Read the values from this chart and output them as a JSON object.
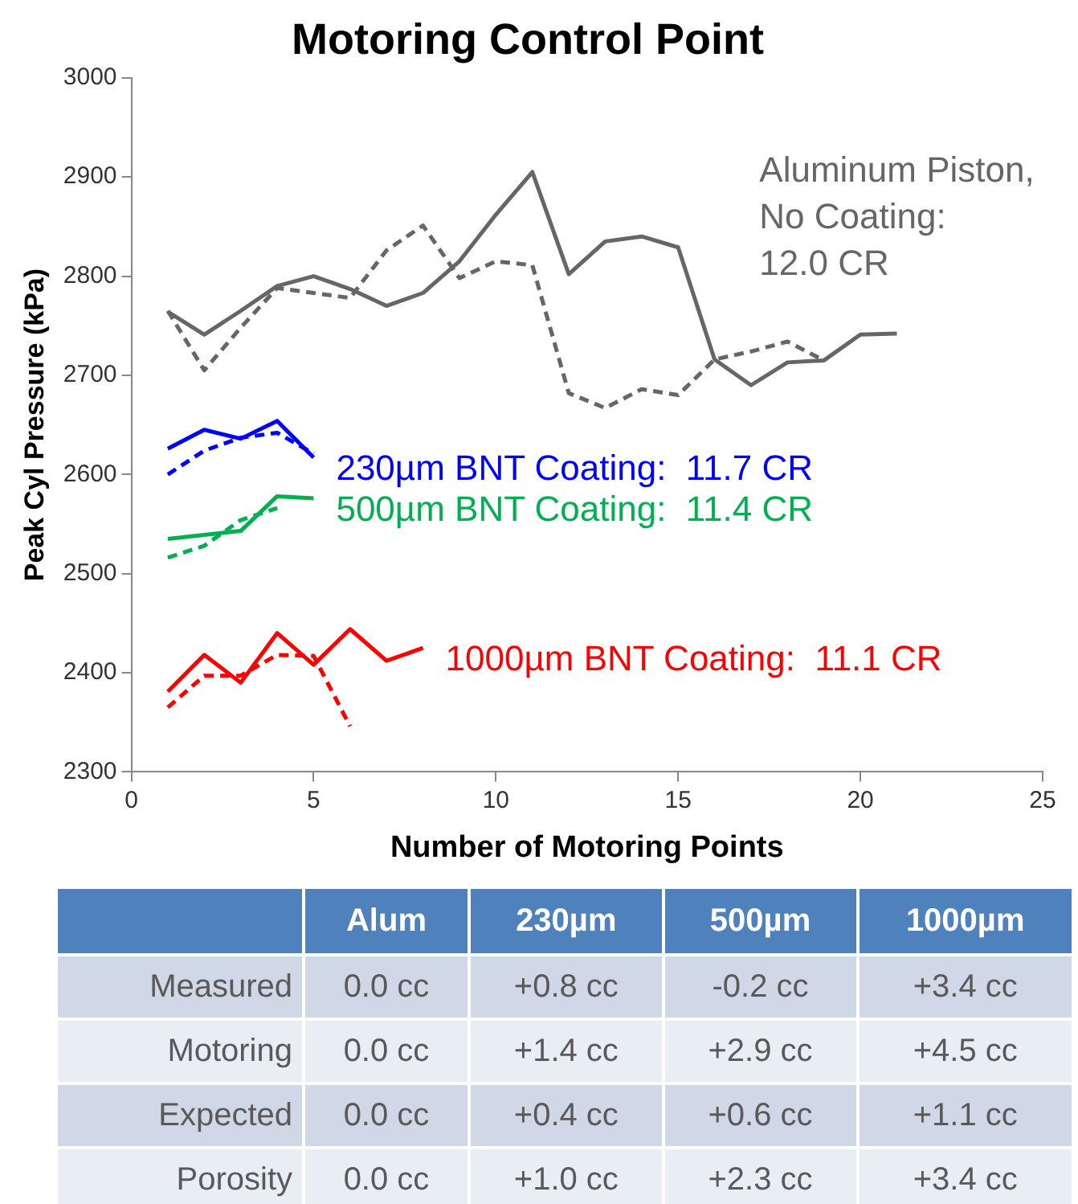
{
  "chart_data": [
    {
      "type": "line",
      "title": "Motoring Control Point",
      "xlabel": "Number of Motoring Points",
      "ylabel": "Peak Cyl Pressure (kPa)",
      "xlim": [
        0,
        25
      ],
      "xticks": [
        0,
        5,
        10,
        15,
        20,
        25
      ],
      "ylim": [
        2300,
        3000
      ],
      "yticks": [
        2300,
        2400,
        2500,
        2600,
        2700,
        2800,
        2900,
        3000
      ],
      "grid": false,
      "marker": "none",
      "series": [
        {
          "name": "Aluminum Piston, No Coating: 12.0 CR",
          "color": "#666666",
          "line_style": "solid",
          "x": [
            1,
            2,
            3,
            4,
            5,
            6,
            7,
            8,
            9,
            10,
            11,
            12,
            13,
            14,
            15,
            16,
            17,
            18,
            19,
            20,
            21
          ],
          "values": [
            2764,
            2741,
            2765,
            2790,
            2800,
            2787,
            2770,
            2783,
            2815,
            2862,
            2905,
            2802,
            2835,
            2840,
            2829,
            2716,
            2690,
            2713,
            2715,
            2741,
            2742
          ]
        },
        {
          "color": "#666666",
          "line_style": "dashed",
          "x": [
            1,
            2,
            3,
            4,
            5,
            6,
            7,
            8,
            9,
            10,
            11,
            12,
            13,
            14,
            15,
            16,
            17,
            18,
            19
          ],
          "values": [
            2765,
            2705,
            2748,
            2788,
            2783,
            2778,
            2826,
            2851,
            2798,
            2815,
            2811,
            2682,
            2667,
            2686,
            2680,
            2716,
            2724,
            2734,
            2715
          ]
        },
        {
          "name": "230µm BNT Coating:  11.7 CR",
          "color": "#0000ff",
          "line_style": "solid",
          "x": [
            1,
            2,
            3,
            4,
            5
          ],
          "values": [
            2626,
            2645,
            2636,
            2654,
            2617
          ]
        },
        {
          "color": "#0000ff",
          "line_style": "dashed",
          "x": [
            1,
            2,
            3,
            4,
            5
          ],
          "values": [
            2600,
            2624,
            2637,
            2642,
            2621
          ]
        },
        {
          "name": "500µm BNT Coating:  11.4 CR",
          "color": "#00b050",
          "line_style": "solid",
          "x": [
            1,
            2,
            3,
            4,
            5
          ],
          "values": [
            2535,
            2539,
            2543,
            2578,
            2576
          ]
        },
        {
          "color": "#00b050",
          "line_style": "dashed",
          "x": [
            1,
            2,
            3,
            4
          ],
          "values": [
            2516,
            2528,
            2554,
            2566
          ]
        },
        {
          "name": "1000µm BNT Coating:  11.1 CR",
          "color": "#ff0000",
          "line_style": "solid",
          "x": [
            1,
            2,
            3,
            4,
            5,
            6,
            7,
            8
          ],
          "values": [
            2381,
            2418,
            2390,
            2440,
            2408,
            2444,
            2412,
            2425
          ]
        },
        {
          "color": "#ff0000",
          "line_style": "dashed",
          "x": [
            1,
            2,
            3,
            4,
            5,
            6
          ],
          "values": [
            2365,
            2397,
            2397,
            2418,
            2417,
            2346
          ]
        }
      ]
    },
    {
      "type": "other",
      "categories": [
        null,
        "Alum",
        "230µm",
        "500µm",
        "1000µm"
      ],
      "y_categories": [
        "Measured",
        "Motoring",
        "Expected",
        "Porosity"
      ],
      "cell_labels": [
        [
          "0.0 cc",
          "+0.8 cc",
          "-0.2 cc",
          "+3.4 cc"
        ],
        [
          "0.0 cc",
          "+1.4 cc",
          "+2.9 cc",
          "+4.5 cc"
        ],
        [
          "0.0 cc",
          "+0.4 cc",
          "+0.6 cc",
          "+1.1 cc"
        ],
        [
          "0.0 cc",
          "+1.0 cc",
          "+2.3 cc",
          "+3.4 cc"
        ]
      ]
    }
  ]
}
